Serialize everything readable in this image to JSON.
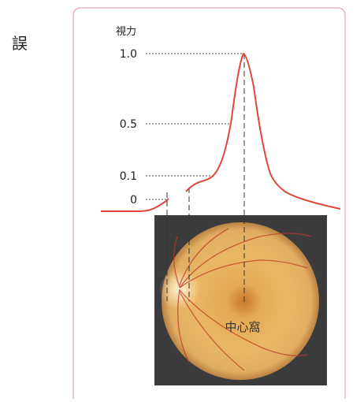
{
  "side_label": "誤",
  "axis": {
    "title": "視力",
    "ticks": [
      "1.0",
      "0.5",
      "0.1",
      "0"
    ]
  },
  "annotation": "中心窩"
}
